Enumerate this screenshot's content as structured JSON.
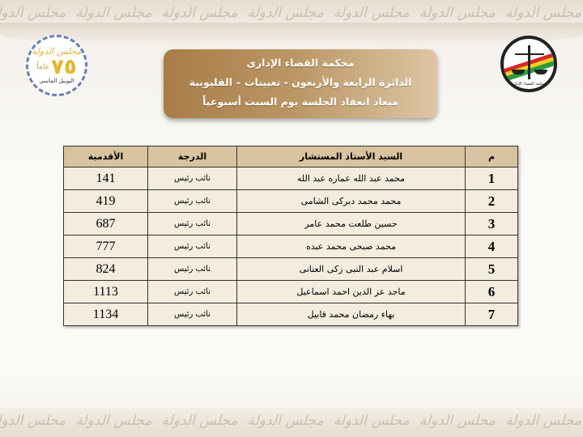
{
  "watermark_text": "مجلس الدولة",
  "header": {
    "line1": "محكمة القضاء الإدارى",
    "line2": "الدائرة الرابعة والأربعون - تعيينات – القليوبية",
    "line3": "ميعاد انعقاد الجلسة يوم السبت أسبوعياً"
  },
  "badge": {
    "org": "مجلس الدولة",
    "number": "٧٥",
    "years": "عاماً",
    "jubilee": "اليوبيل الماسي"
  },
  "logo": {
    "text": "محكمة القضاء الإدارى",
    "colors": [
      "#d8282a",
      "#f0d020",
      "#2a9a3a"
    ]
  },
  "table": {
    "columns": [
      "م",
      "السيد الأستاذ المستشار",
      "الدرجة",
      "الأقدمية"
    ],
    "rows": [
      {
        "no": "1",
        "name": "محمد عبد الله عماره عبد الله",
        "rank": "نائب رئيس",
        "seniority": "141"
      },
      {
        "no": "2",
        "name": "محمد محمد دبركى الشامى",
        "rank": "نائب رئيس",
        "seniority": "419"
      },
      {
        "no": "3",
        "name": "حسين طلعت محمد عامر",
        "rank": "نائب رئيس",
        "seniority": "687"
      },
      {
        "no": "4",
        "name": "محمد صبحى محمد عبده",
        "rank": "نائب رئيس",
        "seniority": "777"
      },
      {
        "no": "5",
        "name": "اسلام عبد النبى زكى العنانى",
        "rank": "نائب رئيس",
        "seniority": "824"
      },
      {
        "no": "6",
        "name": "ماجد عز الدين احمد اسماعيل",
        "rank": "نائب رئيس",
        "seniority": "1113"
      },
      {
        "no": "7",
        "name": "بهاء رمضان محمد قابيل",
        "rank": "نائب رئيس",
        "seniority": "1134"
      }
    ]
  }
}
